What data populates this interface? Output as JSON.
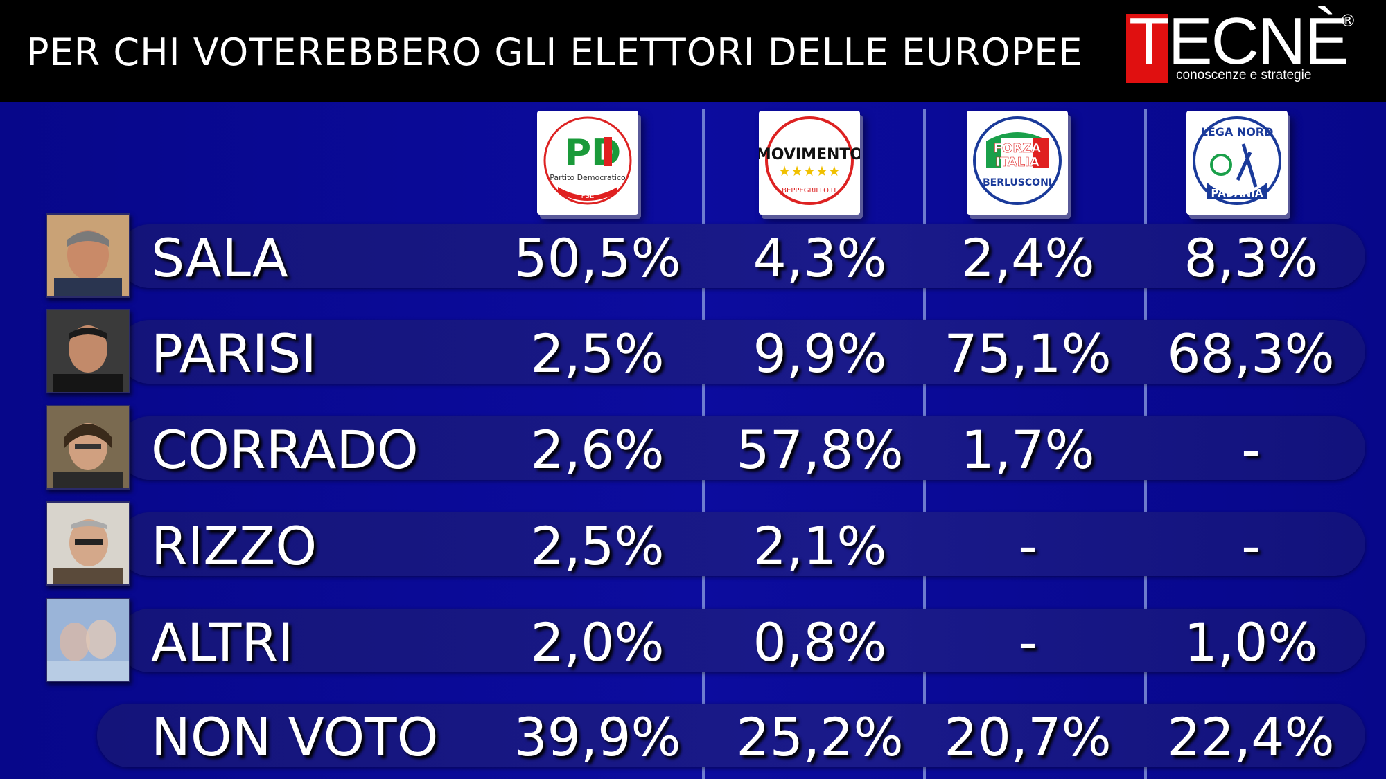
{
  "header": {
    "title": "PER CHI VOTEREBBERO GLI ELETTORI DELLE EUROPEE"
  },
  "brand": {
    "name": "TECNÈ",
    "registered": "®",
    "tagline": "conoscenze e strategie",
    "accent": "#e01010"
  },
  "chart_data": {
    "type": "table",
    "title": "PER CHI VOTEREBBERO GLI ELETTORI DELLE EUROPEE",
    "columns": [
      {
        "id": "pd",
        "logo_lines": [
          "PD",
          "Partito Democratico",
          "PSE"
        ]
      },
      {
        "id": "m5s",
        "logo_lines": [
          "MOVIMENTO",
          "BEPPEGRILLO.IT"
        ]
      },
      {
        "id": "fi",
        "logo_lines": [
          "FORZA",
          "ITALIA",
          "BERLUSCONI"
        ]
      },
      {
        "id": "lega",
        "logo_lines": [
          "LEGA NORD",
          "PADANIA"
        ]
      }
    ],
    "rows": [
      {
        "label": "SALA",
        "values": [
          "50,5%",
          "4,3%",
          "2,4%",
          "8,3%"
        ]
      },
      {
        "label": "PARISI",
        "values": [
          "2,5%",
          "9,9%",
          "75,1%",
          "68,3%"
        ]
      },
      {
        "label": "CORRADO",
        "values": [
          "2,6%",
          "57,8%",
          "1,7%",
          "-"
        ]
      },
      {
        "label": "RIZZO",
        "values": [
          "2,5%",
          "2,1%",
          "-",
          "-"
        ]
      },
      {
        "label": "ALTRI",
        "values": [
          "2,0%",
          "0,8%",
          "-",
          "1,0%"
        ]
      },
      {
        "label": "NON VOTO",
        "values": [
          "39,9%",
          "25,2%",
          "20,7%",
          "22,4%"
        ]
      }
    ]
  }
}
